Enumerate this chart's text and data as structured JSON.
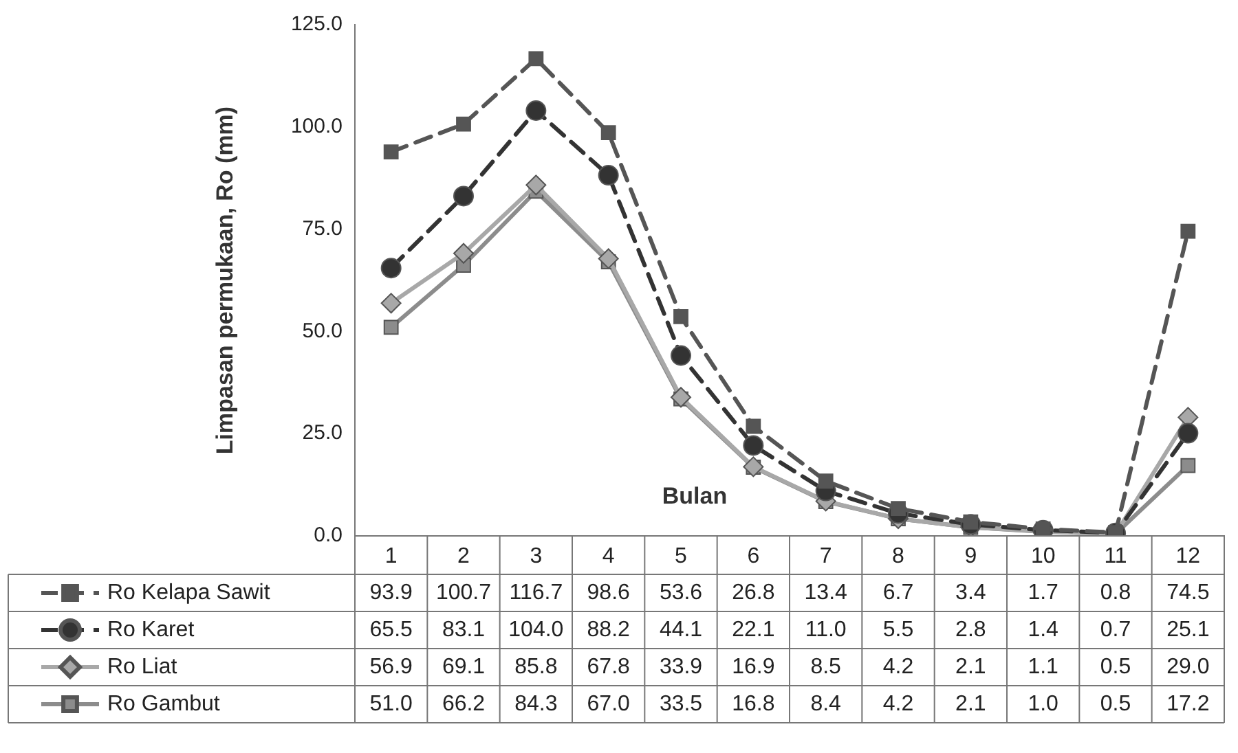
{
  "chart_data": {
    "type": "line",
    "xlabel": "Bulan",
    "ylabel": "Limpasan permukaan, Ro (mm)",
    "categories": [
      "1",
      "2",
      "3",
      "4",
      "5",
      "6",
      "7",
      "8",
      "9",
      "10",
      "11",
      "12"
    ],
    "ylim": [
      0,
      125
    ],
    "yticks": [
      {
        "value": 0,
        "label": "0.0"
      },
      {
        "value": 25,
        "label": "25.0"
      },
      {
        "value": 50,
        "label": "50.0"
      },
      {
        "value": 75,
        "label": "75.0"
      },
      {
        "value": 100,
        "label": "100.0"
      },
      {
        "value": 125,
        "label": "125.0"
      }
    ],
    "grid": false,
    "legend": "bottom",
    "series": [
      {
        "name": "Ro Kelapa Sawit",
        "color": "#555555",
        "marker": "square",
        "line_style": "dashed",
        "values": [
          93.9,
          100.7,
          116.7,
          98.6,
          53.6,
          26.8,
          13.4,
          6.7,
          3.4,
          1.7,
          0.8,
          74.5
        ],
        "value_labels": [
          "93.9",
          "100.7",
          "116.7",
          "98.6",
          "53.6",
          "26.8",
          "13.4",
          "6.7",
          "3.4",
          "1.7",
          "0.8",
          "74.5"
        ]
      },
      {
        "name": "Ro Karet",
        "color": "#333333",
        "marker": "circle",
        "line_style": "dashed",
        "values": [
          65.5,
          83.1,
          104.0,
          88.2,
          44.1,
          22.1,
          11.0,
          5.5,
          2.8,
          1.4,
          0.7,
          25.1
        ],
        "value_labels": [
          "65.5",
          "83.1",
          "104.0",
          "88.2",
          "44.1",
          "22.1",
          "11.0",
          "5.5",
          "2.8",
          "1.4",
          "0.7",
          "25.1"
        ]
      },
      {
        "name": "Ro Liat",
        "color": "#a8a8a8",
        "marker": "diamond",
        "line_style": "solid",
        "values": [
          56.9,
          69.1,
          85.8,
          67.8,
          33.9,
          16.9,
          8.5,
          4.2,
          2.1,
          1.1,
          0.5,
          29.0
        ],
        "value_labels": [
          "56.9",
          "69.1",
          "85.8",
          "67.8",
          "33.9",
          "16.9",
          "8.5",
          "4.2",
          "2.1",
          "1.1",
          "0.5",
          "29.0"
        ]
      },
      {
        "name": "Ro Gambut",
        "color": "#8c8c8c",
        "marker": "square",
        "line_style": "solid",
        "values": [
          51.0,
          66.2,
          84.3,
          67.0,
          33.5,
          16.8,
          8.4,
          4.2,
          2.1,
          1.0,
          0.5,
          17.2
        ],
        "value_labels": [
          "51.0",
          "66.2",
          "84.3",
          "67.0",
          "33.5",
          "16.8",
          "8.4",
          "4.2",
          "2.1",
          "1.0",
          "0.5",
          "17.2"
        ]
      }
    ]
  }
}
